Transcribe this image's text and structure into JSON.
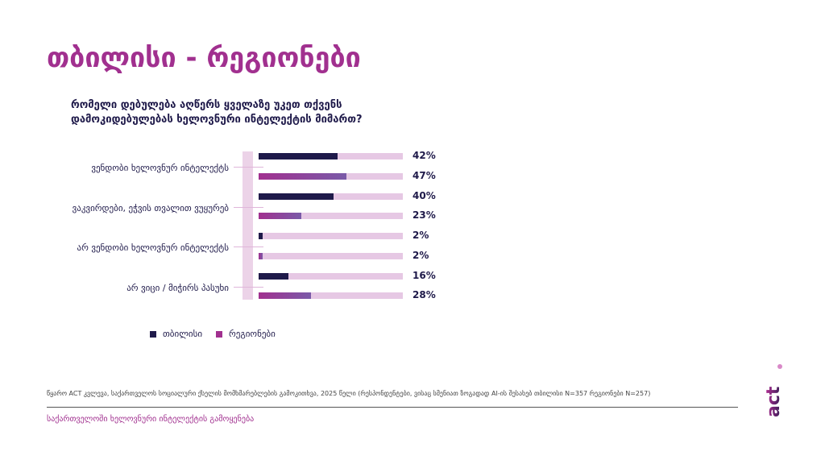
{
  "title": "თბილისი - რეგიონები",
  "chart_data": {
    "type": "bar",
    "title": "რომელი დებულება აღწერს ყველაზე უკეთ თქვენს დამოკიდებულებას ხელოვნური ინტელექტის მიმართ?",
    "categories": [
      "ვენდობი ხელოვნურ ინტელექტს",
      "ვაკვირდები, ეჭვის თვალით ვუყურებ",
      "არ ვენდობი ხელოვნურ ინტელექტს",
      "არ ვიცი / მიჭირს პასუხი"
    ],
    "series": [
      {
        "name": "თბილისი",
        "color": "#1f1a4a",
        "values": [
          42,
          40,
          2,
          16
        ],
        "labels": [
          "42%",
          "40%",
          "2%",
          "16%"
        ]
      },
      {
        "name": "რეგიონები",
        "color": "#a1308f",
        "values": [
          47,
          23,
          2,
          28
        ],
        "labels": [
          "47%",
          "23%",
          "2%",
          "28%"
        ]
      }
    ],
    "xlim": [
      0,
      77
    ],
    "legend": "bottom"
  },
  "values": {
    "tbilisi": [
      42,
      40,
      2,
      16
    ],
    "regions": [
      47,
      23,
      2,
      28
    ]
  },
  "source": "წყარო ACT კვლევა, საქართველოს სოციალური ქსელის მომხმარებლების გამოკითხვა, 2025 წელი (რესპონდენტები, ვისაც სმენიათ ზოგადად AI-ის შესახებ თბილისი N=357 რეგიონები N=257)",
  "footer": "საქართველოში ხელოვნური ინტელექტის გამოყენება",
  "logo": "ACT"
}
